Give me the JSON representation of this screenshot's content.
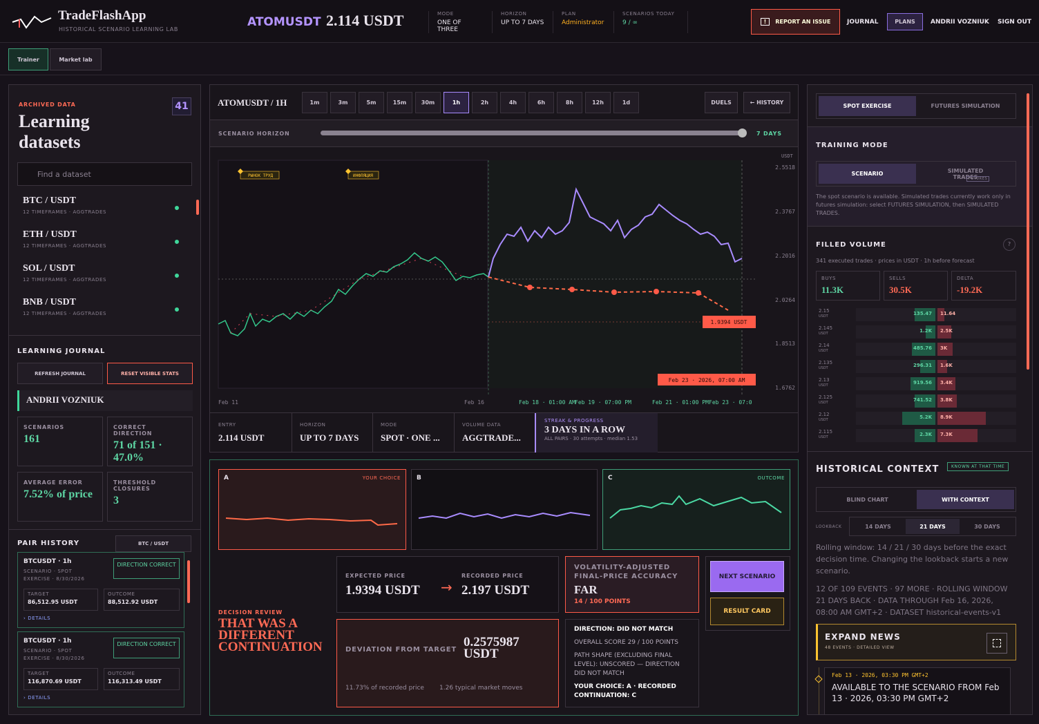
{
  "header": {
    "brand": "TradeFlashApp",
    "tagline": "HISTORICAL SCENARIO LEARNING LAB",
    "symbol": "ATOMUSDT",
    "price": "2.114 USDT",
    "stats": [
      {
        "label": "MODE",
        "value": "ONE OF THREE"
      },
      {
        "label": "HORIZON",
        "value": "UP TO 7 DAYS"
      },
      {
        "label": "PLAN",
        "value": "Administrator"
      },
      {
        "label": "SCENARIOS TODAY",
        "value": "9 / ∞"
      }
    ],
    "report": "REPORT AN ISSUE",
    "nav": [
      "JOURNAL",
      "PLANS",
      "ANDRII VOZNIUK",
      "SIGN OUT"
    ]
  },
  "tabs": [
    "Trainer",
    "Market lab"
  ],
  "left": {
    "kicker": "ARCHIVED DATA",
    "title": "Learning datasets",
    "count": "41",
    "search": "Find a dataset",
    "datasets": [
      {
        "name": "BTC / USDT",
        "meta": "12 TIMEFRAMES · AGGTRADES"
      },
      {
        "name": "ETH / USDT",
        "meta": "12 TIMEFRAMES · AGGTRADES"
      },
      {
        "name": "SOL / USDT",
        "meta": "12 TIMEFRAMES · AGGTRADES"
      },
      {
        "name": "BNB / USDT",
        "meta": "12 TIMEFRAMES · AGGTRADES"
      }
    ],
    "journal": {
      "title": "LEARNING JOURNAL",
      "buttons": [
        "REFRESH JOURNAL",
        "RESET VISIBLE STATS"
      ],
      "user": "ANDRII VOZNIUK",
      "stats": [
        {
          "label": "SCENARIOS",
          "value": "161"
        },
        {
          "label": "CORRECT DIRECTION",
          "value": "71 of 151 · 47.0%"
        },
        {
          "label": "AVERAGE ERROR",
          "value": "7.52% of price"
        },
        {
          "label": "THRESHOLD CLOSURES",
          "value": "3"
        }
      ]
    },
    "history": {
      "title": "PAIR HISTORY",
      "filter": "BTC / USDT",
      "entries": [
        {
          "pair": "BTCUSDT · 1h",
          "meta": "SCENARIO · SPOT EXERCISE · 8/30/2026",
          "result": "DIRECTION CORRECT",
          "target_label": "TARGET",
          "target": "86,512.95 USDT",
          "outcome_label": "OUTCOME",
          "outcome": "88,512.92 USDT",
          "details": "DETAILS"
        },
        {
          "pair": "BTCUSDT · 1h",
          "meta": "SCENARIO · SPOT EXERCISE · 8/30/2026",
          "result": "DIRECTION CORRECT",
          "target_label": "TARGET",
          "target": "116,870.69 USDT",
          "outcome_label": "OUTCOME",
          "outcome": "116,313.49 USDT",
          "details": "DETAILS"
        }
      ]
    }
  },
  "chart": {
    "title": "ATOMUSDT / 1H",
    "timeframes": [
      "1m",
      "3m",
      "5m",
      "15m",
      "30m",
      "1h",
      "2h",
      "4h",
      "6h",
      "8h",
      "12h",
      "1d"
    ],
    "active": "1h",
    "duels": "DUELS",
    "history": "← HISTORY",
    "horizon_label": "SCENARIO HORIZON",
    "horizon": "7 DAYS",
    "unit": "USDT",
    "yticks": [
      "2.5518",
      "2.3767",
      "2.2016",
      "2.0264",
      "1.8513",
      "1.6762"
    ],
    "annotations": [
      "РЫНОК ТРУД",
      "ИНФЛЯЦИЯ"
    ],
    "xticks": [
      "Feb 11",
      "Feb 16",
      "Feb 18 · 01:00 AM",
      "Feb 19 · 07:00 PM",
      "Feb 21 · 01:00 PM",
      "Feb 23 · 07:0"
    ],
    "target_tag": "1.9394 USDT",
    "time_tag": "Feb 23 · 2026, 07:00 AM",
    "info": [
      {
        "label": "ENTRY",
        "value": "2.114 USDT"
      },
      {
        "label": "HORIZON",
        "value": "UP TO 7 DAYS"
      },
      {
        "label": "MODE",
        "value": "SPOT · ONE ..."
      },
      {
        "label": "VOLUME DATA",
        "value": "AGGTRADE..."
      }
    ],
    "streak": {
      "label": "STREAK & PROGRESS",
      "value": "3 DAYS IN A ROW",
      "meta": "ALL PAIRS · 30 attempts · median 1.53"
    }
  },
  "review": {
    "choices": [
      {
        "letter": "A",
        "tag": "YOUR CHOICE"
      },
      {
        "letter": "B"
      },
      {
        "letter": "C",
        "tag": "OUTCOME"
      }
    ],
    "kicker": "DECISION REVIEW",
    "verdict": "THAT WAS A DIFFERENT CONTINUATION",
    "expected_label": "EXPECTED PRICE",
    "expected": "1.9394 USDT",
    "recorded_label": "RECORDED PRICE",
    "recorded": "2.197 USDT",
    "accuracy_label": "VOLATILITY-ADJUSTED FINAL-PRICE ACCURACY",
    "accuracy": "FAR",
    "points": "14 / 100 POINTS",
    "next": "NEXT SCENARIO",
    "card": "RESULT CARD",
    "deviation_label": "DEVIATION FROM TARGET",
    "deviation": "0.2575987 USDT",
    "deviation_pct": "11.73% of recorded price",
    "deviation_moves": "1.26 typical market moves",
    "details": [
      "DIRECTION: DID NOT MATCH",
      "OVERALL SCORE 29 / 100 POINTS",
      "PATH SHAPE (EXCLUDING FINAL LEVEL): UNSCORED — DIRECTION DID NOT MATCH",
      "YOUR CHOICE: A · RECORDED CONTINUATION: C"
    ]
  },
  "right": {
    "tabs": [
      "SPOT EXERCISE",
      "FUTURES SIMULATION"
    ],
    "training_title": "TRAINING MODE",
    "modes": [
      "SCENARIO",
      "SIMULATED TRADES"
    ],
    "futures_badge": "FUTURES",
    "note": "The spot scenario is available. Simulated trades currently work only in futures simulation: select FUTURES SIMULATION, then SIMULATED TRADES.",
    "volume": {
      "title": "FILLED VOLUME",
      "help": "?",
      "sub": "341 executed trades · prices in USDT · 1h before forecast",
      "totals": [
        {
          "label": "BUYS",
          "value": "11.3K"
        },
        {
          "label": "SELLS",
          "value": "30.5K"
        },
        {
          "label": "DELTA",
          "value": "-19.2K"
        }
      ],
      "unit": "USDT",
      "rows": [
        {
          "price": "2.15",
          "buy": "135.47",
          "sell": "11.64"
        },
        {
          "price": "2.145",
          "buy": "1.2K",
          "sell": "2.5K"
        },
        {
          "price": "2.14",
          "buy": "485.76",
          "sell": "3K"
        },
        {
          "price": "2.135",
          "buy": "296.31",
          "sell": "1.6K"
        },
        {
          "price": "2.13",
          "buy": "919.56",
          "sell": "3.4K"
        },
        {
          "price": "2.125",
          "buy": "741.52",
          "sell": "3.8K"
        },
        {
          "price": "2.12",
          "buy": "5.2K",
          "sell": "8.9K"
        },
        {
          "price": "2.115",
          "buy": "2.3K",
          "sell": "7.3K"
        }
      ]
    },
    "context": {
      "title": "HISTORICAL CONTEXT",
      "badge": "KNOWN AT THAT TIME",
      "views": [
        "BLIND CHART",
        "WITH CONTEXT"
      ],
      "lookback_label": "LOOKBACK",
      "lookbacks": [
        "14 DAYS",
        "21 DAYS",
        "30 DAYS"
      ],
      "text": "Rolling window: 14 / 21 / 30 days before the exact decision time. Changing the lookback starts a new scenario.",
      "status": "12 OF 109 EVENTS · 97 MORE · ROLLING WINDOW 21 DAYS BACK · DATA THROUGH Feb 16, 2026, 08:00 AM GMT+2 · DATASET historical-events-v1",
      "news_title": "EXPAND NEWS",
      "news_sub": "48 EVENTS · DETAILED VIEW",
      "news_date": "Feb 13 · 2026, 03:30 PM GMT+2",
      "news_text": "AVAILABLE TO THE SCENARIO FROM Feb 13 · 2026, 03:30 PM GMT+2"
    }
  }
}
